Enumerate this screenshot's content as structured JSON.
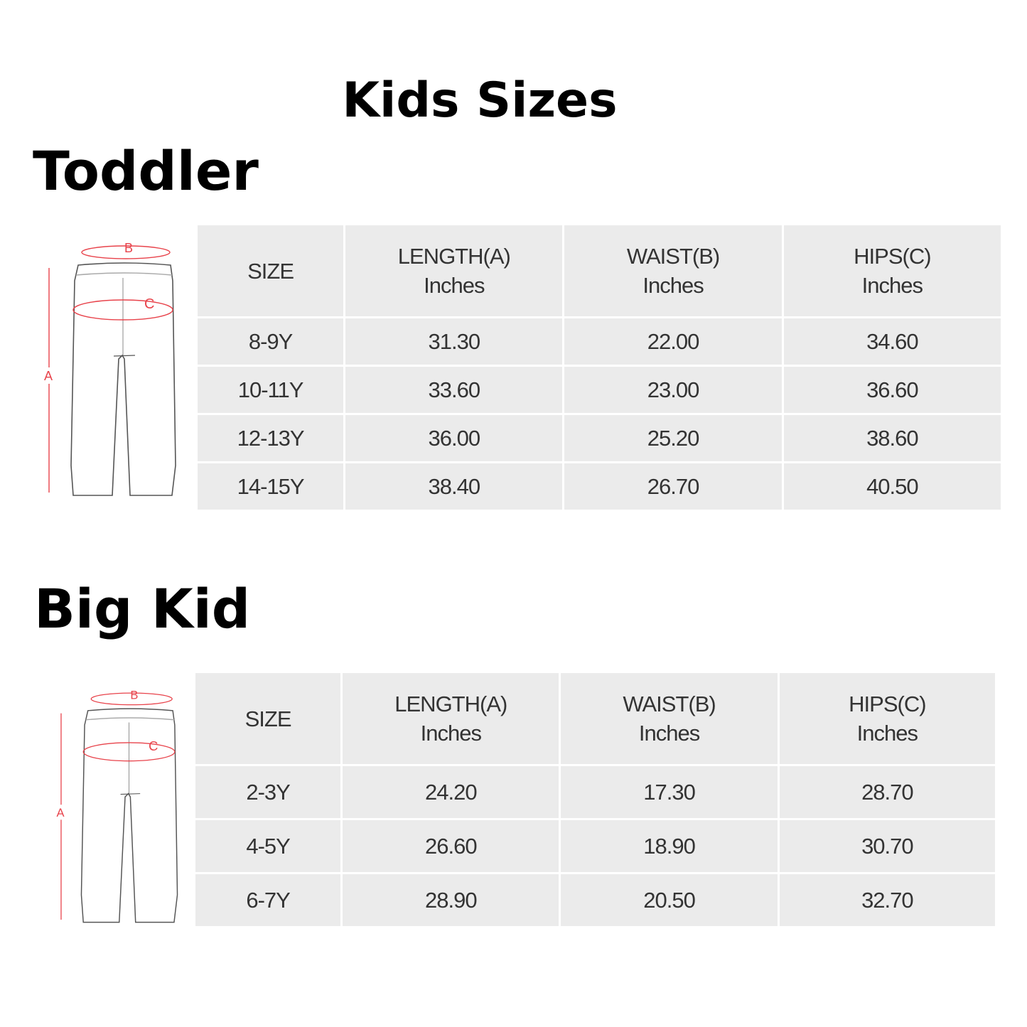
{
  "title": "Kids Sizes",
  "diagram_labels": {
    "a": "A",
    "b": "B",
    "c": "C"
  },
  "colors": {
    "measure_lines": "#e8434b",
    "cell_bg": "#ebebeb",
    "text": "#333333"
  },
  "sections": [
    {
      "heading": "Toddler",
      "headers": [
        {
          "line1": "SIZE",
          "line2": ""
        },
        {
          "line1": "LENGTH(A)",
          "line2": "Inches"
        },
        {
          "line1": "WAIST(B)",
          "line2": "Inches"
        },
        {
          "line1": "HIPS(C)",
          "line2": "Inches"
        }
      ],
      "rows": [
        [
          "8-9Y",
          "31.30",
          "22.00",
          "34.60"
        ],
        [
          "10-11Y",
          "33.60",
          "23.00",
          "36.60"
        ],
        [
          "12-13Y",
          "36.00",
          "25.20",
          "38.60"
        ],
        [
          "14-15Y",
          "38.40",
          "26.70",
          "40.50"
        ]
      ]
    },
    {
      "heading": "Big Kid",
      "headers": [
        {
          "line1": "SIZE",
          "line2": ""
        },
        {
          "line1": "LENGTH(A)",
          "line2": "Inches"
        },
        {
          "line1": "WAIST(B)",
          "line2": "Inches"
        },
        {
          "line1": "HIPS(C)",
          "line2": "Inches"
        }
      ],
      "rows": [
        [
          "2-3Y",
          "24.20",
          "17.30",
          "28.70"
        ],
        [
          "4-5Y",
          "26.60",
          "18.90",
          "30.70"
        ],
        [
          "6-7Y",
          "28.90",
          "20.50",
          "32.70"
        ]
      ]
    }
  ]
}
